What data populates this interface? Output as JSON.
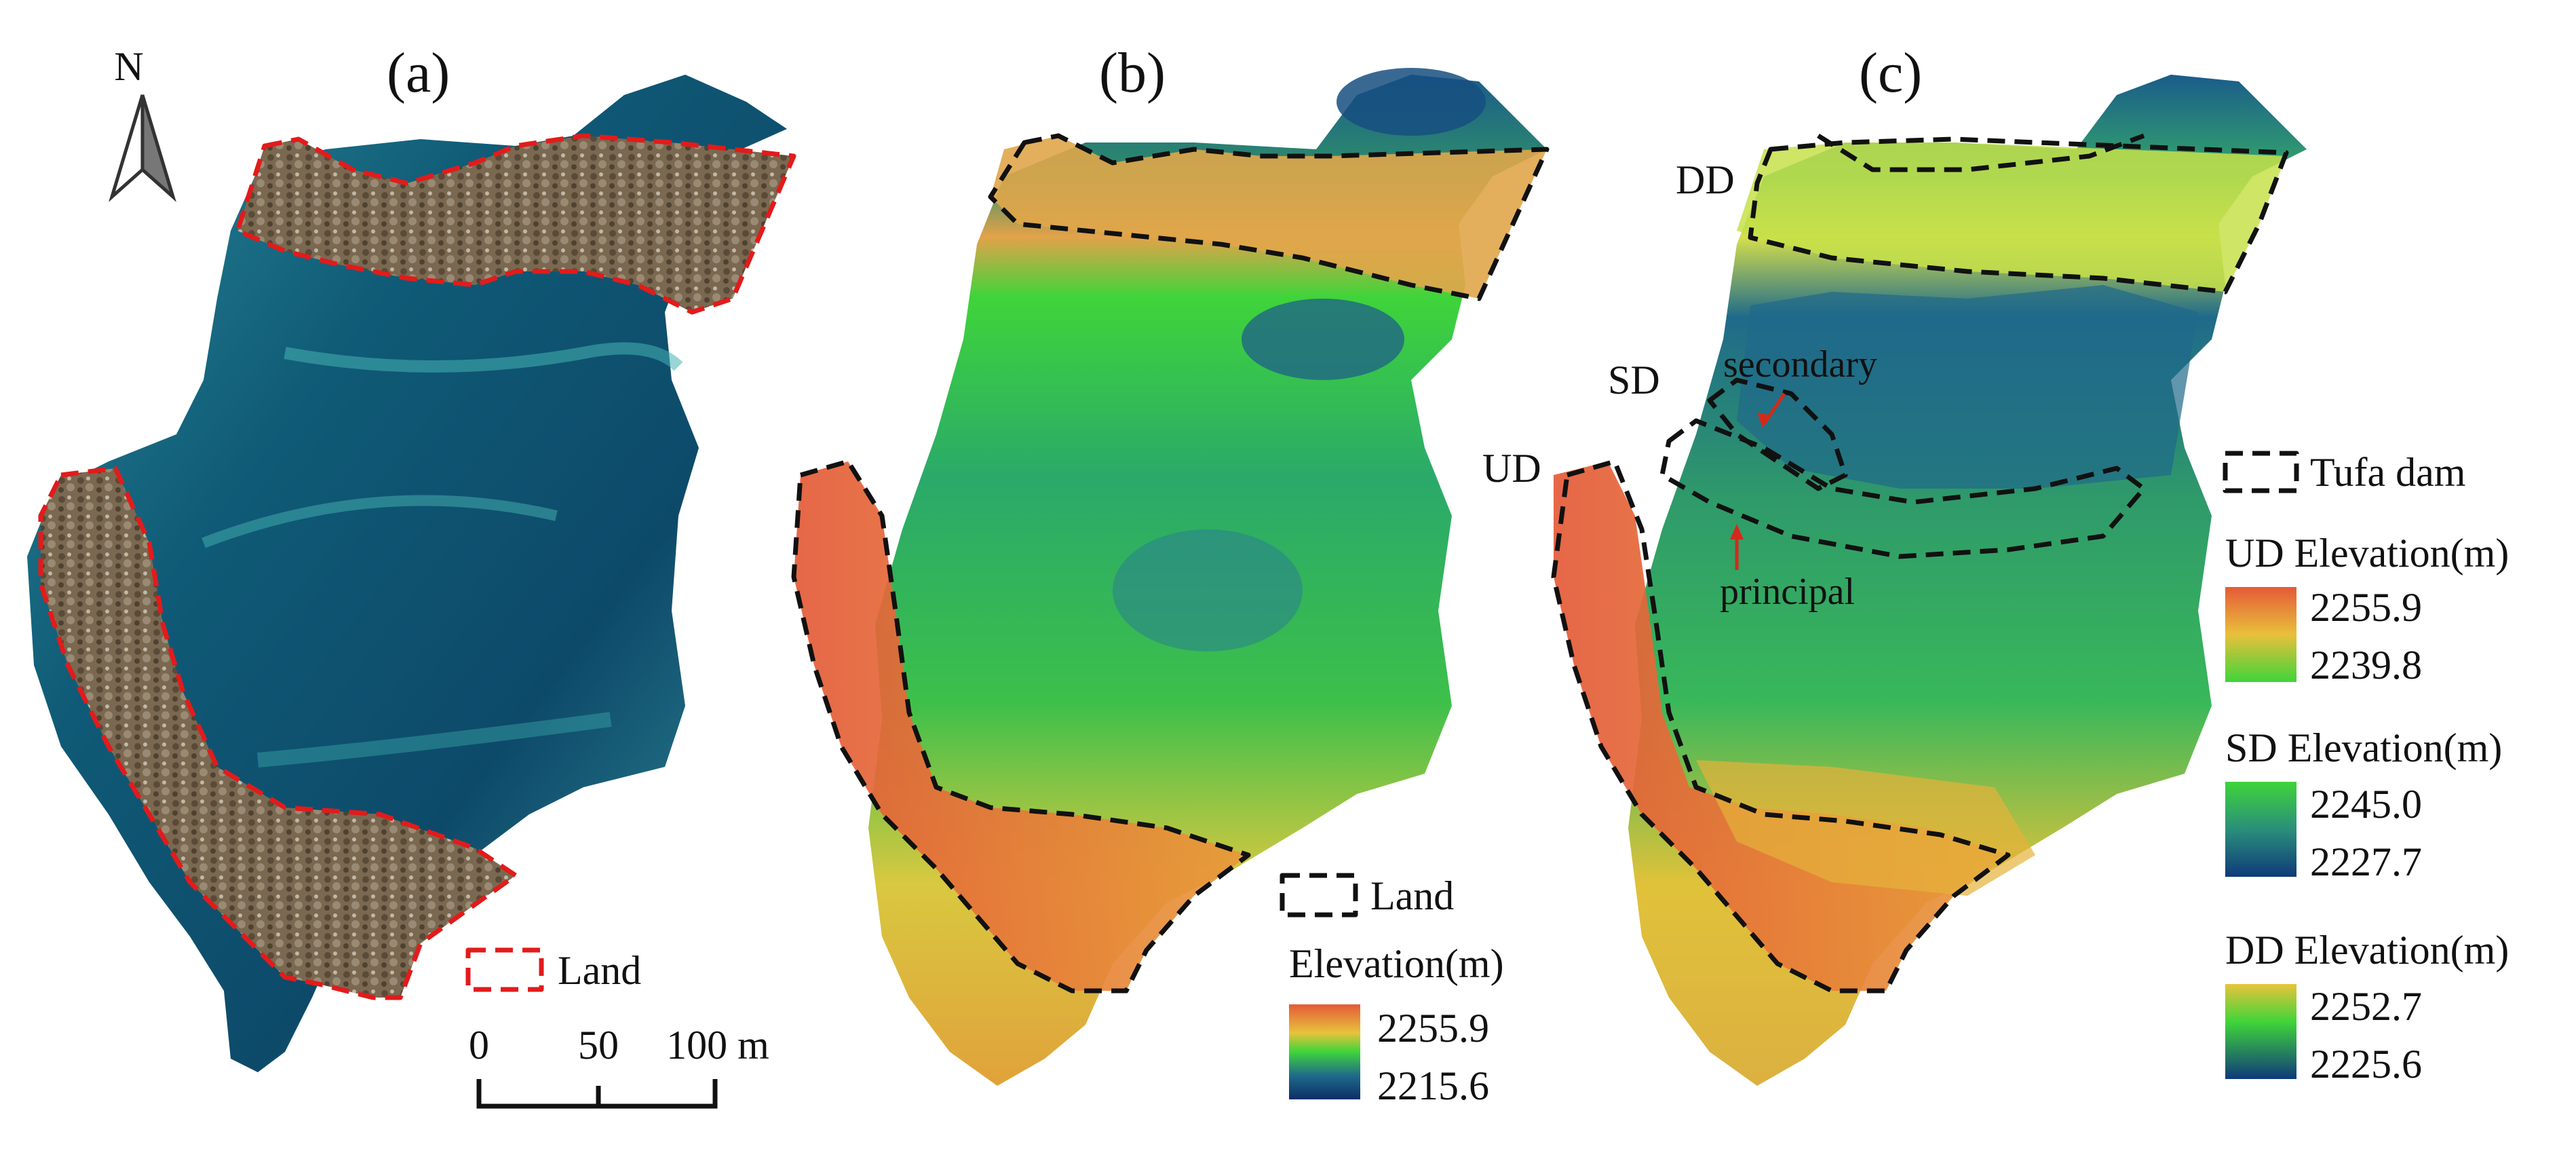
{
  "figure": {
    "panels": [
      {
        "id": "a",
        "label": "(a)"
      },
      {
        "id": "b",
        "label": "(b)"
      },
      {
        "id": "c",
        "label": "(c)"
      }
    ],
    "north_arrow": {
      "label": "N"
    },
    "scale_bar": {
      "ticks": [
        "0",
        "50",
        "100 m"
      ]
    }
  },
  "panel_a": {
    "legend": {
      "land_label": "Land",
      "outline_color": "#e21b1b"
    }
  },
  "panel_b": {
    "legend": {
      "land_label": "Land",
      "elevation_title": "Elevation(m)",
      "max": "2255.9",
      "min": "2215.6"
    }
  },
  "panel_c": {
    "dam_labels": {
      "dd": "DD",
      "sd": "SD",
      "ud": "UD"
    },
    "annotations": {
      "secondary": "secondary",
      "principal": "principal"
    },
    "legend": {
      "tufa_label": "Tufa dam",
      "ud_title": "UD Elevation(m)",
      "ud_max": "2255.9",
      "ud_min": "2239.8",
      "sd_title": "SD Elevation(m)",
      "sd_max": "2245.0",
      "sd_min": "2227.7",
      "dd_title": "DD Elevation(m)",
      "dd_max": "2252.7",
      "dd_min": "2225.6"
    }
  },
  "colors": {
    "land_outline": "#e21b1b",
    "elev_high": "#e0603a",
    "elev_mid": "#3fd43a",
    "elev_low": "#0f3a7a",
    "water_deep": "#0d4f6e",
    "water_shallow": "#2f9aa3"
  }
}
